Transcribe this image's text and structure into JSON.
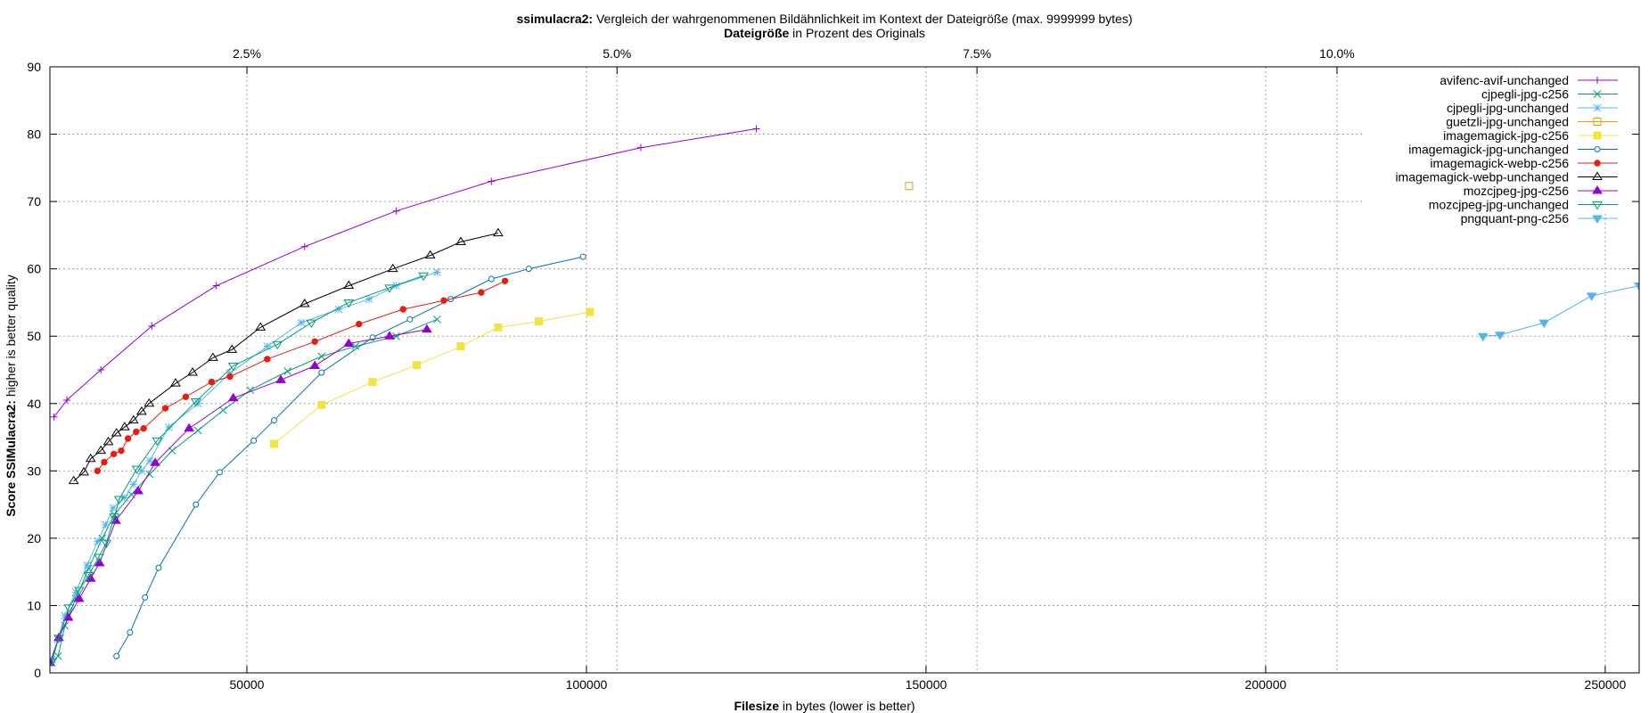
{
  "chart_data": {
    "type": "line",
    "title_bold": "ssimulacra2:",
    "title_rest": " Vergleich der wahrgenommenen Bildähnlichkeit im Kontext der Dateigröße (max. 9999999 bytes)",
    "x2label_bold": "Dateigröße",
    "x2label_rest": " in Prozent des Originals",
    "xlabel_bold": "Filesize",
    "xlabel_rest": " in bytes (lower is better)",
    "ylabel_bold": "Score SSIMulacra2:",
    "ylabel_rest": " higher is better quality",
    "xlim": [
      21000,
      255000
    ],
    "ylim": [
      0,
      90
    ],
    "grid": true,
    "legend_position": "top-right",
    "x_ticks": [
      {
        "value": 50000,
        "label": "50000"
      },
      {
        "value": 100000,
        "label": "100000"
      },
      {
        "value": 150000,
        "label": "150000"
      },
      {
        "value": 200000,
        "label": "200000"
      },
      {
        "value": 250000,
        "label": "250000"
      }
    ],
    "y_ticks": [
      {
        "value": 0,
        "label": "0"
      },
      {
        "value": 10,
        "label": "10"
      },
      {
        "value": 20,
        "label": "20"
      },
      {
        "value": 30,
        "label": "30"
      },
      {
        "value": 40,
        "label": "40"
      },
      {
        "value": 50,
        "label": "50"
      },
      {
        "value": 60,
        "label": "60"
      },
      {
        "value": 70,
        "label": "70"
      },
      {
        "value": 80,
        "label": "80"
      },
      {
        "value": 90,
        "label": "90"
      }
    ],
    "x2_ticks": [
      {
        "value": 50000,
        "label": "2.5%"
      },
      {
        "value": 104500,
        "label": "5.0%"
      },
      {
        "value": 157500,
        "label": "7.5%"
      },
      {
        "value": 210500,
        "label": "10.0%"
      }
    ],
    "series": [
      {
        "name": "avifenc-avif-unchanged",
        "color": "#9400d3",
        "marker": "plus",
        "points": [
          [
            21600,
            38
          ],
          [
            23500,
            40.5
          ],
          [
            28500,
            45
          ],
          [
            36000,
            51.5
          ],
          [
            45500,
            57.5
          ],
          [
            58500,
            63.3
          ],
          [
            72000,
            68.6
          ],
          [
            86000,
            73
          ],
          [
            108000,
            78
          ],
          [
            125000,
            80.8
          ]
        ]
      },
      {
        "name": "cjpegli-jpg-c256",
        "color": "#009e73",
        "marker": "cross",
        "points": [
          [
            21300,
            1.5
          ],
          [
            22200,
            2.5
          ],
          [
            23200,
            7
          ],
          [
            24800,
            11
          ],
          [
            26700,
            15.5
          ],
          [
            28700,
            20
          ],
          [
            30500,
            23.5
          ],
          [
            33000,
            26.5
          ],
          [
            35700,
            29.5
          ],
          [
            39000,
            33
          ],
          [
            42800,
            36
          ],
          [
            46500,
            39
          ],
          [
            50500,
            42
          ],
          [
            56000,
            44.8
          ],
          [
            61000,
            47
          ],
          [
            66000,
            48.5
          ],
          [
            72000,
            50
          ],
          [
            78000,
            52.5
          ]
        ]
      },
      {
        "name": "cjpegli-jpg-unchanged",
        "color": "#56b4e9",
        "marker": "star",
        "points": [
          [
            21300,
            2
          ],
          [
            22200,
            5
          ],
          [
            23200,
            8.5
          ],
          [
            24800,
            12
          ],
          [
            26500,
            16
          ],
          [
            28000,
            19.5
          ],
          [
            29200,
            22
          ],
          [
            30300,
            24.5
          ],
          [
            32000,
            26
          ],
          [
            33300,
            28
          ],
          [
            34500,
            30
          ],
          [
            35700,
            31.5
          ],
          [
            38500,
            36.5
          ],
          [
            42800,
            40
          ],
          [
            47500,
            44.5
          ],
          [
            53000,
            48.5
          ],
          [
            58000,
            52
          ],
          [
            63500,
            54
          ],
          [
            68000,
            55.5
          ],
          [
            72000,
            57.5
          ],
          [
            78000,
            59.5
          ]
        ]
      },
      {
        "name": "guetzli-jpg-unchanged",
        "color": "#e69f00",
        "marker": "square",
        "points": [
          [
            147500,
            72.3
          ]
        ]
      },
      {
        "name": "imagemagick-jpg-c256",
        "color": "#f0e442",
        "marker": "filledsquare",
        "points": [
          [
            54000,
            34
          ],
          [
            61000,
            39.8
          ],
          [
            68500,
            43.2
          ],
          [
            75000,
            45.7
          ],
          [
            81500,
            48.5
          ],
          [
            87000,
            51.3
          ],
          [
            93000,
            52.2
          ],
          [
            100500,
            53.6
          ]
        ]
      },
      {
        "name": "imagemagick-jpg-unchanged",
        "color": "#0072b2",
        "marker": "circle",
        "points": [
          [
            30800,
            2.5
          ],
          [
            32800,
            6
          ],
          [
            35000,
            11.2
          ],
          [
            37000,
            15.6
          ],
          [
            42500,
            25
          ],
          [
            46000,
            29.8
          ],
          [
            51000,
            34.5
          ],
          [
            54000,
            37.5
          ],
          [
            61000,
            44.6
          ],
          [
            68500,
            49.8
          ],
          [
            74000,
            52.5
          ],
          [
            80000,
            55.5
          ],
          [
            86000,
            58.5
          ],
          [
            91500,
            60
          ],
          [
            99500,
            61.8
          ]
        ]
      },
      {
        "name": "imagemagick-webp-c256",
        "color": "#e51e10",
        "marker": "filledcircle",
        "points": [
          [
            28000,
            30
          ],
          [
            29000,
            31.3
          ],
          [
            30400,
            32.5
          ],
          [
            31500,
            33
          ],
          [
            32500,
            34.8
          ],
          [
            33700,
            35.8
          ],
          [
            34800,
            36.3
          ],
          [
            38000,
            39.3
          ],
          [
            41000,
            41
          ],
          [
            44800,
            43.2
          ],
          [
            47500,
            44
          ],
          [
            53000,
            46.6
          ],
          [
            60000,
            49.2
          ],
          [
            66500,
            51.8
          ],
          [
            73000,
            54
          ],
          [
            79000,
            55.3
          ],
          [
            84500,
            56.5
          ],
          [
            88000,
            58.2
          ]
        ]
      },
      {
        "name": "imagemagick-webp-unchanged",
        "color": "#000000",
        "marker": "triangle",
        "points": [
          [
            24500,
            28.5
          ],
          [
            26000,
            29.8
          ],
          [
            27000,
            31.8
          ],
          [
            28500,
            33
          ],
          [
            29600,
            34.3
          ],
          [
            30800,
            35.6
          ],
          [
            32000,
            36.5
          ],
          [
            33300,
            37.5
          ],
          [
            34500,
            38.8
          ],
          [
            35600,
            40
          ],
          [
            39500,
            43
          ],
          [
            42000,
            44.6
          ],
          [
            45000,
            46.8
          ],
          [
            47800,
            48
          ],
          [
            52000,
            51.3
          ],
          [
            58500,
            54.8
          ],
          [
            65000,
            57.5
          ],
          [
            71500,
            60
          ],
          [
            77000,
            62
          ],
          [
            81500,
            64
          ],
          [
            87000,
            65.3
          ]
        ]
      },
      {
        "name": "mozcjpeg-jpg-c256",
        "color": "#9400d3",
        "marker": "filledtriangle",
        "points": [
          [
            21000,
            1.5
          ],
          [
            22300,
            5.2
          ],
          [
            23700,
            8.2
          ],
          [
            25300,
            11
          ],
          [
            27000,
            14
          ],
          [
            28300,
            16.3
          ],
          [
            30700,
            22.6
          ],
          [
            34000,
            27
          ],
          [
            36500,
            31.2
          ],
          [
            41500,
            36.3
          ],
          [
            48000,
            40.8
          ],
          [
            55000,
            43.5
          ],
          [
            60000,
            45.6
          ],
          [
            65000,
            48.9
          ],
          [
            71000,
            50
          ],
          [
            76500,
            51
          ]
        ]
      },
      {
        "name": "mozcjpeg-jpg-unchanged",
        "color": "#009e73",
        "marker": "triangledown",
        "points": [
          [
            21300,
            1.7
          ],
          [
            22300,
            5.2
          ],
          [
            23800,
            9.7
          ],
          [
            25300,
            12.3
          ],
          [
            26700,
            14.5
          ],
          [
            28200,
            17.2
          ],
          [
            29300,
            19.3
          ],
          [
            30500,
            23.2
          ],
          [
            31200,
            25.8
          ],
          [
            33800,
            30.3
          ],
          [
            36800,
            34.5
          ],
          [
            42500,
            40.3
          ],
          [
            48000,
            45.6
          ],
          [
            54500,
            48.8
          ],
          [
            59500,
            52
          ],
          [
            65000,
            55
          ],
          [
            71000,
            57.2
          ],
          [
            76000,
            59
          ]
        ]
      },
      {
        "name": "pngquant-png-c256",
        "color": "#56b4e9",
        "marker": "filledtriangledown",
        "points": [
          [
            232000,
            50
          ],
          [
            234500,
            50.2
          ],
          [
            241000,
            52
          ],
          [
            248000,
            56
          ],
          [
            255000,
            57.5
          ]
        ]
      }
    ]
  }
}
